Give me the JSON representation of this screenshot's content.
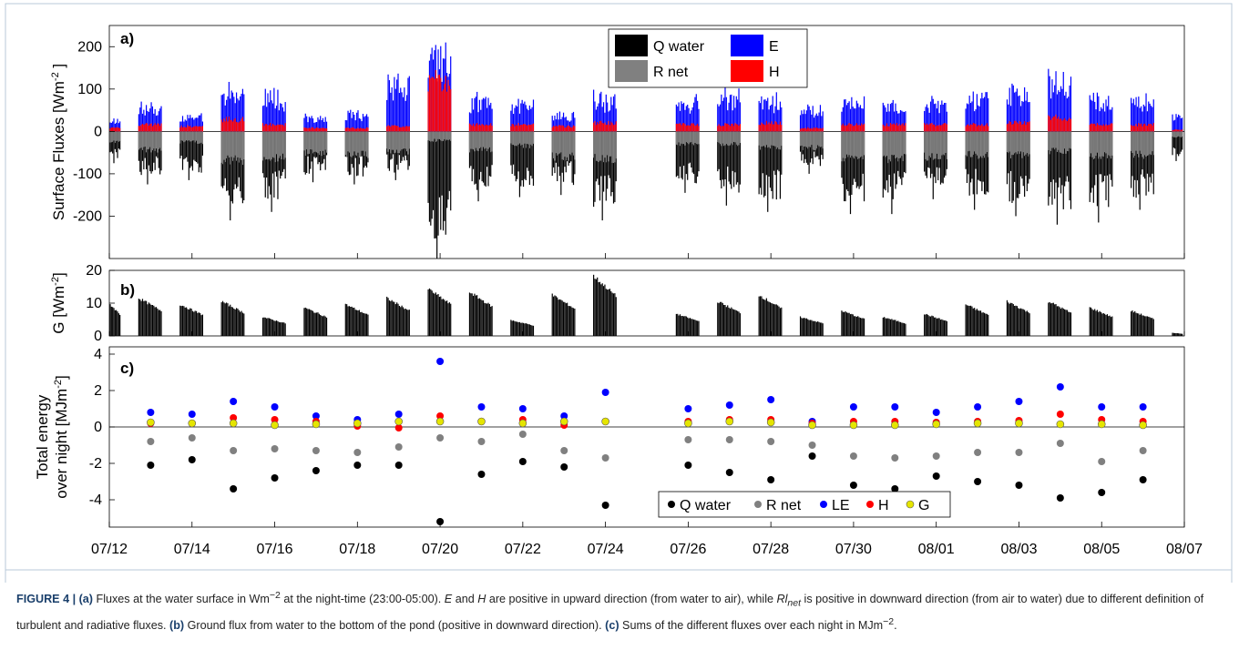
{
  "colors": {
    "q_water": "#000000",
    "r_net": "#808080",
    "e": "#0000ff",
    "h": "#ff0000",
    "g_marker": "#e5e500",
    "caption_title": "#1a3f6b"
  },
  "x_axis": {
    "tick_labels": [
      "07/12",
      "07/14",
      "07/16",
      "07/18",
      "07/20",
      "07/22",
      "07/24",
      "07/26",
      "07/28",
      "07/30",
      "08/01",
      "08/03",
      "08/05",
      "08/07"
    ],
    "range_days": [
      0,
      26
    ],
    "tick_days": [
      0,
      2,
      4,
      6,
      8,
      10,
      12,
      14,
      16,
      18,
      20,
      22,
      24,
      26
    ]
  },
  "chart_data": [
    {
      "panel": "a)",
      "type": "bar",
      "ylabel_main": "Surface Fluxes [Wm",
      "ylabel_sup": "-2",
      "ylabel_end": " ]",
      "ylim": [
        -300,
        250
      ],
      "yticks": [
        -200,
        -100,
        0,
        100,
        200
      ],
      "legend": [
        "Q water",
        "E",
        "R net",
        "H"
      ],
      "legend_position": "top-center",
      "nights": [
        "07/12",
        "07/13",
        "07/14",
        "07/15",
        "07/16",
        "07/17",
        "07/18",
        "07/19",
        "07/20",
        "07/21",
        "07/22",
        "07/23",
        "07/24",
        "07/26",
        "07/27",
        "07/28",
        "07/29",
        "07/30",
        "07/31",
        "08/01",
        "08/02",
        "08/03",
        "08/04",
        "08/05",
        "08/06",
        "08/07"
      ],
      "night_day": [
        0,
        1,
        2,
        3,
        4,
        5,
        6,
        7,
        8,
        9,
        10,
        11,
        12,
        14,
        15,
        16,
        17,
        18,
        19,
        20,
        21,
        22,
        23,
        24,
        25,
        26
      ],
      "series": [
        {
          "name": "Q water",
          "min_values": [
            -75,
            -125,
            -115,
            -210,
            -190,
            -120,
            -125,
            -115,
            -300,
            -165,
            -155,
            -150,
            -210,
            -145,
            -175,
            -190,
            -100,
            -195,
            -195,
            -160,
            -185,
            -200,
            -220,
            -215,
            -185,
            -70
          ]
        },
        {
          "name": "R net",
          "min_values": [
            -30,
            -50,
            -30,
            -80,
            -75,
            -60,
            -65,
            -55,
            -25,
            -50,
            -40,
            -70,
            -75,
            -35,
            -35,
            -45,
            -45,
            -75,
            -75,
            -70,
            -65,
            -65,
            -55,
            -70,
            -65,
            -15
          ]
        },
        {
          "name": "E",
          "max_values": [
            35,
            75,
            45,
            125,
            110,
            45,
            55,
            160,
            250,
            95,
            85,
            50,
            100,
            90,
            105,
            95,
            70,
            90,
            85,
            90,
            105,
            120,
            160,
            105,
            100,
            45
          ]
        },
        {
          "name": "H",
          "max_values": [
            10,
            20,
            15,
            35,
            20,
            10,
            10,
            15,
            145,
            20,
            20,
            15,
            25,
            20,
            20,
            25,
            10,
            20,
            20,
            20,
            20,
            25,
            40,
            20,
            20,
            5
          ]
        }
      ]
    },
    {
      "panel": "b)",
      "type": "bar",
      "ylabel_main": "G [Wm",
      "ylabel_sup": "-2",
      "ylabel_end": "]",
      "ylim": [
        0,
        20
      ],
      "yticks": [
        0,
        10,
        20
      ],
      "series": [
        {
          "name": "G",
          "max_values": [
            10,
            12,
            10,
            11,
            6,
            9,
            10,
            12,
            15,
            14,
            5,
            13,
            19,
            7,
            11,
            13,
            6,
            8,
            6,
            7,
            10,
            11,
            11,
            9,
            8,
            1
          ]
        }
      ]
    },
    {
      "panel": "c)",
      "type": "scatter",
      "ylabel_line1": "Total energy",
      "ylabel_line2_main": "over night [MJm",
      "ylabel_line2_sup": "-2",
      "ylabel_line2_end": "]",
      "ylim": [
        -5.5,
        4.4
      ],
      "yticks": [
        -4,
        -2,
        0,
        2,
        4
      ],
      "legend": [
        "Q water",
        "R net",
        "LE",
        "H",
        "G"
      ],
      "legend_position": "bottom-right",
      "x_days": [
        1,
        2,
        3,
        4,
        5,
        6,
        7,
        8,
        9,
        10,
        11,
        12,
        14,
        15,
        16,
        17,
        18,
        19,
        20,
        21,
        22,
        23,
        24,
        25
      ],
      "series": [
        {
          "name": "Q water",
          "values": [
            -2.1,
            -1.8,
            -3.4,
            -2.8,
            -2.4,
            -2.1,
            -2.1,
            -5.2,
            -2.6,
            -1.9,
            -2.2,
            -4.3,
            -2.1,
            -2.5,
            -2.9,
            -1.6,
            -3.2,
            -3.4,
            -2.7,
            -3.0,
            -3.2,
            -3.9,
            -3.6,
            -2.9
          ]
        },
        {
          "name": "R net",
          "values": [
            -0.8,
            -0.6,
            -1.3,
            -1.2,
            -1.3,
            -1.4,
            -1.1,
            -0.6,
            -0.8,
            -0.4,
            -1.3,
            -1.7,
            -0.7,
            -0.7,
            -0.8,
            -1.0,
            -1.6,
            -1.7,
            -1.6,
            -1.4,
            -1.4,
            -0.9,
            -1.9,
            -1.3
          ]
        },
        {
          "name": "LE",
          "values": [
            0.8,
            0.7,
            1.4,
            1.1,
            0.6,
            0.4,
            0.7,
            3.6,
            1.1,
            1.0,
            0.6,
            1.9,
            1.0,
            1.2,
            1.5,
            0.3,
            1.1,
            1.1,
            0.8,
            1.1,
            1.4,
            2.2,
            1.1,
            1.1
          ]
        },
        {
          "name": "H",
          "values": [
            0.2,
            0.2,
            0.5,
            0.4,
            0.3,
            0.05,
            -0.05,
            0.6,
            0.3,
            0.4,
            0.1,
            0.3,
            0.3,
            0.4,
            0.4,
            0.2,
            0.3,
            0.3,
            0.25,
            0.3,
            0.35,
            0.7,
            0.4,
            0.3
          ]
        },
        {
          "name": "G",
          "values": [
            0.25,
            0.2,
            0.2,
            0.1,
            0.15,
            0.2,
            0.3,
            0.3,
            0.3,
            0.2,
            0.3,
            0.3,
            0.2,
            0.3,
            0.25,
            0.1,
            0.1,
            0.1,
            0.15,
            0.2,
            0.2,
            0.15,
            0.15,
            0.1
          ]
        }
      ]
    }
  ],
  "caption": {
    "title": "FIGURE 4 | ",
    "a_label": "(a)",
    "a_text1": " Fluxes at the water surface in Wm",
    "a_sup": "−2",
    "a_text2": " at the night-time (23:00-05:00). ",
    "e_var": "E",
    "and_text": " and ",
    "h_var": "H",
    "a_text3": " are positive in upward direction (from water to air), while ",
    "rl_var": "Rl",
    "rl_sub": "net",
    "a_text4": " is positive in downward direction (from air to water) due to different definition of turbulent and radiative fluxes. ",
    "b_label": "(b)",
    "b_text": " Ground flux from water to the bottom of the pond (positive in downward direction). ",
    "c_label": "(c)",
    "c_text1": " Sums of the different fluxes over each night in MJm",
    "c_sup": "−2",
    "c_text2": "."
  }
}
